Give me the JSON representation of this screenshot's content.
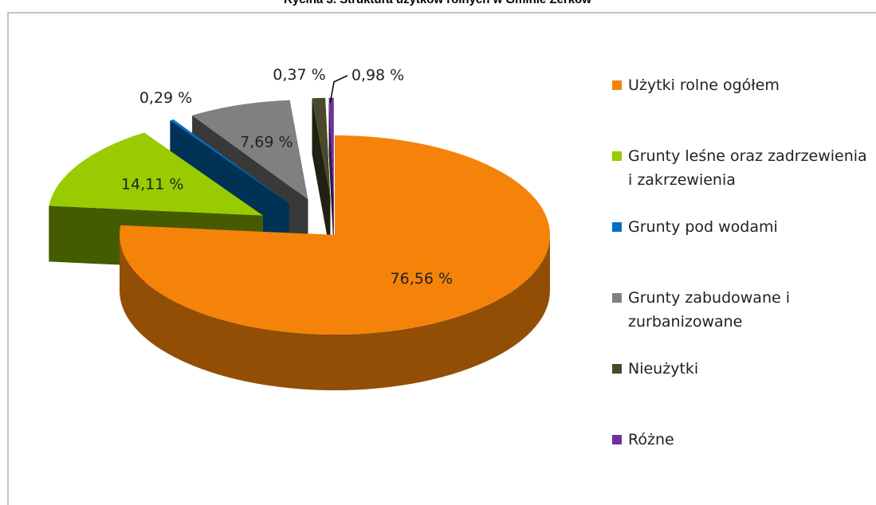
{
  "chart_data": {
    "type": "pie3d",
    "title": "Rycina 3. Struktura użytków rolnych w Gminie Żerków",
    "categories": [
      "Użytki rolne ogółem",
      "Grunty leśne oraz zadrzewienia i zakrzewienia",
      "Grunty pod wodami",
      "Grunty zabudowane i zurbanizowane",
      "Nieużytki",
      "Różne"
    ],
    "values": [
      76.56,
      14.11,
      0.29,
      7.69,
      0.98,
      0.37
    ],
    "value_labels": [
      "76,56 %",
      "14,11 %",
      "0,29 %",
      "7,69 %",
      "0,98 %",
      "0,37 %"
    ],
    "colors": [
      "#f5830a",
      "#99cc00",
      "#0070c0",
      "#808080",
      "#4a4a2a",
      "#7030a0"
    ],
    "legend": "right"
  }
}
